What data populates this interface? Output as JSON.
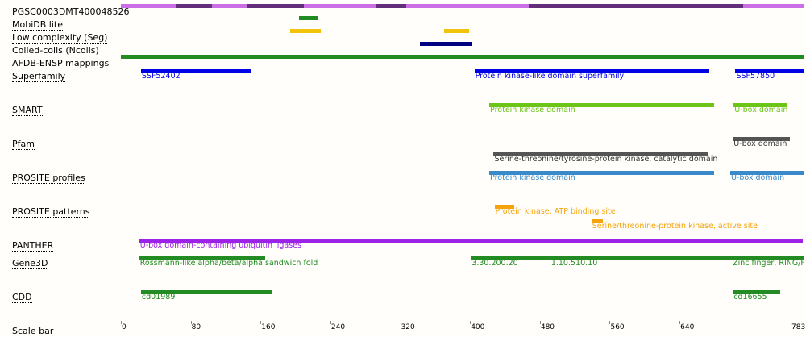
{
  "protein": {
    "id": "PGSC0003DMT400048526",
    "length": 783
  },
  "scale": {
    "label": "Scale bar",
    "ticks": [
      "0",
      "80",
      "160",
      "240",
      "320",
      "400",
      "480",
      "560",
      "640",
      "783"
    ]
  },
  "colors": {
    "disorder_light": "#cc6ee6",
    "disorder_dark": "#632e7a",
    "mobidb": "#228b22",
    "seg": "#f2c30c",
    "coils": "#000080",
    "afdb": "#228b22",
    "superfamily": "#0000e6",
    "smart": "#6cc417",
    "pfam": "#555555",
    "prosite_profiles": "#3a89c9",
    "prosite_patterns": "#f5a30c",
    "panther": "#9b22e6",
    "gene3d": "#228b22",
    "cdd": "#228b22"
  },
  "tracks": [
    {
      "name": "PGSC0003DMT400048526",
      "link": false,
      "color": "disorder_light",
      "features": [
        {
          "start": 1,
          "end": 63,
          "label": "",
          "color": "disorder_light"
        },
        {
          "start": 64,
          "end": 104,
          "label": "",
          "color": "disorder_dark"
        },
        {
          "start": 105,
          "end": 144,
          "label": "",
          "color": "disorder_light"
        },
        {
          "start": 145,
          "end": 210,
          "label": "",
          "color": "disorder_dark"
        },
        {
          "start": 211,
          "end": 293,
          "label": "",
          "color": "disorder_light"
        },
        {
          "start": 294,
          "end": 327,
          "label": "",
          "color": "disorder_dark"
        },
        {
          "start": 328,
          "end": 467,
          "label": "",
          "color": "disorder_light"
        },
        {
          "start": 468,
          "end": 713,
          "label": "",
          "color": "disorder_dark"
        },
        {
          "start": 714,
          "end": 783,
          "label": "",
          "color": "disorder_light"
        }
      ]
    },
    {
      "name": "MobiDB lite",
      "link": true,
      "color": "mobidb",
      "features": [
        {
          "start": 205,
          "end": 226,
          "label": ""
        }
      ]
    },
    {
      "name": "Low complexity (Seg)",
      "link": true,
      "color": "seg",
      "features": [
        {
          "start": 195,
          "end": 229,
          "label": ""
        },
        {
          "start": 371,
          "end": 399,
          "label": ""
        }
      ]
    },
    {
      "name": "Coiled-coils (Ncoils)",
      "link": true,
      "color": "coils",
      "features": [
        {
          "start": 344,
          "end": 402,
          "label": ""
        }
      ]
    },
    {
      "name": "AFDB-ENSP mappings",
      "link": true,
      "color": "afdb",
      "features": [
        {
          "start": 1,
          "end": 783,
          "label": ""
        }
      ]
    },
    {
      "name": "Superfamily",
      "link": true,
      "color": "superfamily",
      "features": [
        {
          "start": 24,
          "end": 150,
          "label": "SSF52402"
        },
        {
          "start": 406,
          "end": 674,
          "label": "Protein kinase-like domain superfamily"
        },
        {
          "start": 705,
          "end": 782,
          "label": "SSF57850"
        }
      ]
    },
    {
      "name": "SMART",
      "link": true,
      "color": "smart",
      "features": [
        {
          "start": 423,
          "end": 680,
          "label": "Protein kinase domain"
        },
        {
          "start": 703,
          "end": 764,
          "label": "U-box domain"
        }
      ]
    },
    {
      "name": "Pfam",
      "link": true,
      "color": "pfam",
      "features": [
        {
          "start": 702,
          "end": 766,
          "label": "U-box domain"
        },
        {
          "start": 428,
          "end": 673,
          "label": "Serine-threonine/tyrosine-protein kinase, catalytic domain"
        }
      ]
    },
    {
      "name": "PROSITE profiles",
      "link": true,
      "color": "prosite_profiles",
      "features": [
        {
          "start": 423,
          "end": 680,
          "label": "Protein kinase domain"
        },
        {
          "start": 699,
          "end": 783,
          "label": "U-box domain"
        }
      ]
    },
    {
      "name": "PROSITE patterns",
      "link": true,
      "color": "prosite_patterns",
      "features": [
        {
          "start": 429,
          "end": 451,
          "label": "Protein kinase, ATP binding site"
        },
        {
          "start": 540,
          "end": 552,
          "label": "Serine/threonine-protein kinase, active site"
        }
      ]
    },
    {
      "name": "PANTHER",
      "link": true,
      "color": "panther",
      "features": [
        {
          "start": 22,
          "end": 781,
          "label": "U-box domain-containing ubiquitin ligases"
        }
      ]
    },
    {
      "name": "Gene3D",
      "link": true,
      "color": "gene3d",
      "features": [
        {
          "start": 22,
          "end": 165,
          "label": "Rossmann-like alpha/beta/alpha sandwich fold"
        },
        {
          "start": 402,
          "end": 492,
          "label": "3.30.200.20"
        },
        {
          "start": 493,
          "end": 700,
          "label": "1.10.510.10"
        },
        {
          "start": 701,
          "end": 783,
          "label": "Zinc finger, RING/FYVE/PHD-type"
        }
      ]
    },
    {
      "name": "CDD",
      "link": true,
      "color": "cdd",
      "features": [
        {
          "start": 24,
          "end": 173,
          "label": "cd01989"
        },
        {
          "start": 702,
          "end": 755,
          "label": "cd16655"
        }
      ]
    }
  ]
}
